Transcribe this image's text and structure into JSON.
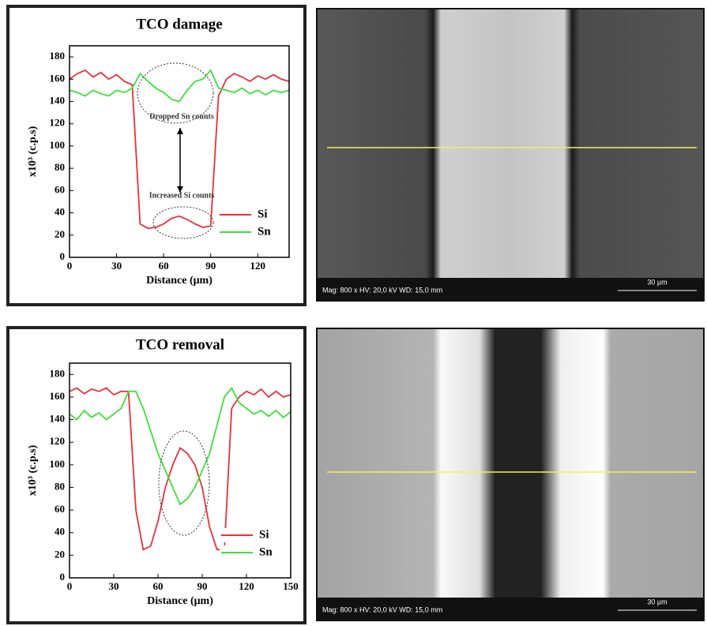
{
  "chart_data": [
    {
      "type": "line",
      "title": "TCO damage",
      "x_label": "Distance (μm)",
      "y_label": "x10³ (c.p.s)",
      "annotations": [
        "Dropped Sn counts",
        "Increased Si counts"
      ],
      "x": [
        0,
        5,
        10,
        15,
        20,
        25,
        30,
        35,
        40,
        45,
        50,
        55,
        60,
        65,
        70,
        75,
        80,
        85,
        90,
        95,
        100,
        105,
        110,
        115,
        120,
        125,
        130,
        135,
        140
      ],
      "series": [
        {
          "name": "Si",
          "color": "#e8313a",
          "values": [
            160,
            165,
            168,
            162,
            166,
            160,
            164,
            158,
            155,
            30,
            26,
            27,
            30,
            35,
            37,
            34,
            30,
            27,
            28,
            145,
            160,
            165,
            162,
            158,
            163,
            160,
            164,
            160,
            158
          ]
        },
        {
          "name": "Sn",
          "color": "#3ee03a",
          "values": [
            150,
            148,
            145,
            150,
            147,
            145,
            150,
            148,
            152,
            165,
            158,
            152,
            148,
            142,
            140,
            150,
            158,
            160,
            168,
            152,
            150,
            148,
            152,
            147,
            150,
            146,
            150,
            148,
            150
          ]
        }
      ],
      "xlim": [
        0,
        140
      ],
      "xticks": [
        0,
        30,
        60,
        90,
        120
      ],
      "ylim": [
        0,
        190
      ],
      "yticks": [
        0,
        20,
        40,
        60,
        80,
        100,
        120,
        140,
        160,
        180
      ],
      "legend": "lower right"
    },
    {
      "type": "line",
      "title": "TCO removal",
      "x_label": "Distance (μm)",
      "y_label": "x10³ (c.p.s)",
      "x": [
        0,
        5,
        10,
        15,
        20,
        25,
        30,
        35,
        40,
        45,
        50,
        55,
        60,
        65,
        70,
        75,
        80,
        85,
        90,
        95,
        100,
        105,
        110,
        115,
        120,
        125,
        130,
        135,
        140,
        145,
        150
      ],
      "series": [
        {
          "name": "Si",
          "color": "#e8313a",
          "values": [
            165,
            168,
            163,
            167,
            165,
            168,
            162,
            165,
            165,
            60,
            25,
            28,
            50,
            80,
            100,
            115,
            110,
            100,
            80,
            45,
            25,
            25,
            150,
            160,
            165,
            162,
            167,
            160,
            165,
            160,
            162
          ]
        },
        {
          "name": "Sn",
          "color": "#3ee03a",
          "values": [
            145,
            140,
            148,
            142,
            146,
            140,
            145,
            150,
            165,
            165,
            150,
            130,
            110,
            95,
            80,
            65,
            70,
            80,
            95,
            110,
            135,
            160,
            168,
            155,
            150,
            145,
            148,
            143,
            148,
            142,
            147
          ]
        }
      ],
      "xlim": [
        0,
        150
      ],
      "xticks": [
        0,
        30,
        60,
        90,
        120,
        150
      ],
      "ylim": [
        0,
        190
      ],
      "yticks": [
        0,
        20,
        40,
        60,
        80,
        100,
        120,
        140,
        160,
        180
      ],
      "legend": "lower right"
    }
  ],
  "sem_images": [
    {
      "caption": "Mag: 800 x   HV: 20,0 kV   WD: 15,0 mm",
      "scale_bar": "30 µm"
    },
    {
      "caption": "Mag: 800 x   HV: 20,0 kV   WD: 15,0 mm",
      "scale_bar": "30 µm"
    }
  ]
}
